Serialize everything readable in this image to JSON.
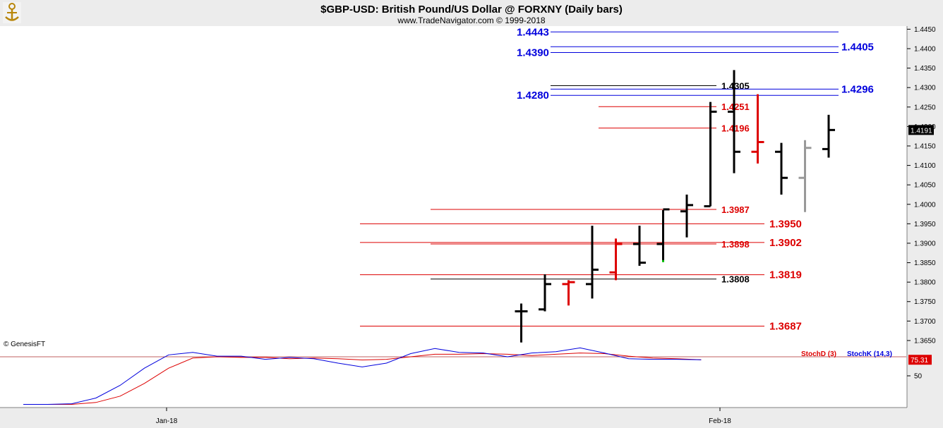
{
  "header": {
    "title": "$GBP-USD:  British Pound/US Dollar @ FORXNY  (Daily bars)",
    "subtitle": "www.TradeNavigator.com © 1999-2018"
  },
  "watermark": "© GenesisFT",
  "colors": {
    "background": "#ffffff",
    "header_bg": "#ececec",
    "axis_bg": "#ececec",
    "blue": "#0000dd",
    "red": "#dd0000",
    "black": "#000000",
    "gray": "#999999",
    "green": "#00bb00",
    "logo": "#b8860b"
  },
  "chart_data": [
    {
      "type": "bar",
      "subtype": "ohlc",
      "title": "$GBP-USD:  British Pound/US Dollar @ FORXNY  (Daily bars)",
      "ylim": [
        1.361,
        1.4458
      ],
      "y_ticks": [
        "1.3650",
        "1.3700",
        "1.3750",
        "1.3800",
        "1.3850",
        "1.3900",
        "1.3950",
        "1.4000",
        "1.4050",
        "1.4100",
        "1.4150",
        "1.4200",
        "1.4250",
        "1.4300",
        "1.4350",
        "1.4400",
        "1.4450"
      ],
      "x_labels": [
        {
          "label": "Jan-18",
          "index": 0
        },
        {
          "label": "Feb-18",
          "index": 29
        }
      ],
      "last_value_label": "1.4191",
      "bars": [
        {
          "i": 15,
          "open": 1.3725,
          "high": 1.3745,
          "low": 1.3645,
          "close": 1.3725,
          "color": "black"
        },
        {
          "i": 16,
          "open": 1.373,
          "high": 1.382,
          "low": 1.3725,
          "close": 1.3795,
          "color": "black"
        },
        {
          "i": 17,
          "open": 1.3795,
          "high": 1.3805,
          "low": 1.374,
          "close": 1.38,
          "color": "red"
        },
        {
          "i": 18,
          "open": 1.3795,
          "high": 1.3945,
          "low": 1.3758,
          "close": 1.3832,
          "color": "black"
        },
        {
          "i": 19,
          "open": 1.3825,
          "high": 1.3912,
          "low": 1.3805,
          "close": 1.3898,
          "color": "red"
        },
        {
          "i": 20,
          "open": 1.3898,
          "high": 1.3945,
          "low": 1.3842,
          "close": 1.385,
          "color": "black"
        },
        {
          "i": 21,
          "open": 1.3898,
          "high": 1.3985,
          "low": 1.3855,
          "close": 1.3987,
          "color": "black"
        },
        {
          "i": 22,
          "open": 1.3982,
          "high": 1.4025,
          "low": 1.3915,
          "close": 1.3998,
          "color": "black"
        },
        {
          "i": 23,
          "open": 1.3995,
          "high": 1.4263,
          "low": 1.3995,
          "close": 1.4238,
          "color": "black"
        },
        {
          "i": 24,
          "open": 1.4238,
          "high": 1.4345,
          "low": 1.408,
          "close": 1.4135,
          "color": "black"
        },
        {
          "i": 25,
          "open": 1.4135,
          "high": 1.4283,
          "low": 1.4105,
          "close": 1.416,
          "color": "red"
        },
        {
          "i": 26,
          "open": 1.4135,
          "high": 1.4158,
          "low": 1.4025,
          "close": 1.4068,
          "color": "black"
        },
        {
          "i": 27,
          "open": 1.4068,
          "high": 1.4165,
          "low": 1.398,
          "close": 1.4145,
          "color": "gray"
        },
        {
          "i": 28,
          "open": 1.4142,
          "high": 1.423,
          "low": 1.412,
          "close": 1.4191,
          "color": "black"
        }
      ],
      "levels": [
        {
          "value": 1.4443,
          "label": "1.4443",
          "color": "blue",
          "label_side": "left"
        },
        {
          "value": 1.4405,
          "label": "1.4405",
          "color": "blue",
          "label_side": "right"
        },
        {
          "value": 1.439,
          "label": "1.4390",
          "color": "blue",
          "label_side": "left"
        },
        {
          "value": 1.4305,
          "label": "1.4305",
          "color": "black",
          "label_side": "mid"
        },
        {
          "value": 1.4296,
          "label": "1.4296",
          "color": "blue",
          "label_side": "right"
        },
        {
          "value": 1.428,
          "label": "1.4280",
          "color": "blue",
          "label_side": "left"
        },
        {
          "value": 1.4251,
          "label": "1.4251",
          "color": "red",
          "label_side": "mid"
        },
        {
          "value": 1.4196,
          "label": "1.4196",
          "color": "red",
          "label_side": "mid"
        },
        {
          "value": 1.3987,
          "label": "1.3987",
          "color": "red",
          "label_side": "mid"
        },
        {
          "value": 1.395,
          "label": "1.3950",
          "color": "red",
          "label_side": "right"
        },
        {
          "value": 1.3902,
          "label": "1.3902",
          "color": "red",
          "label_side": "right"
        },
        {
          "value": 1.3898,
          "label": "1.3898",
          "color": "red",
          "label_side": "mid"
        },
        {
          "value": 1.3819,
          "label": "1.3819",
          "color": "red",
          "label_side": "right"
        },
        {
          "value": 1.3808,
          "label": "1.3808",
          "color": "black",
          "label_side": "mid"
        },
        {
          "value": 1.3687,
          "label": "1.3687",
          "color": "red",
          "label_side": "right"
        }
      ]
    },
    {
      "type": "line",
      "title": "",
      "ylim": [
        0,
        100
      ],
      "y_ticks": [
        "50"
      ],
      "reference_level": 80,
      "last_value_label": "75.31",
      "series": [
        {
          "name": "StochD (3)",
          "color": "red",
          "values": [
            5,
            5,
            5,
            8,
            18,
            38,
            62,
            78,
            80,
            79,
            79,
            77,
            78,
            77,
            75,
            76,
            80,
            84,
            84,
            85,
            84,
            82,
            84,
            86,
            85,
            81,
            78,
            77,
            75.31
          ]
        },
        {
          "name": "StochK (14,3)",
          "color": "blue",
          "values": [
            5,
            5,
            6,
            15,
            35,
            62,
            83,
            87,
            81,
            81,
            76,
            79,
            77,
            70,
            64,
            70,
            85,
            93,
            87,
            86,
            80,
            86,
            88,
            94,
            86,
            77,
            76,
            76,
            75.31
          ]
        }
      ]
    }
  ]
}
